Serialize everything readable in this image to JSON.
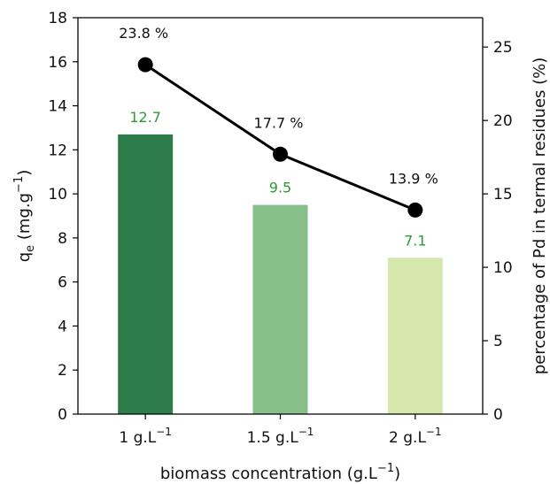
{
  "chart_data": {
    "type": "bar",
    "categories": [
      {
        "base": "1 g.L",
        "sup": "−1"
      },
      {
        "base": "1.5 g.L",
        "sup": "−1"
      },
      {
        "base": "2 g.L",
        "sup": "−1"
      }
    ],
    "bar_series": {
      "values": [
        12.7,
        9.5,
        7.1
      ],
      "labels": [
        "12.7",
        "9.5",
        "7.1"
      ],
      "colors": [
        "#2e7c4a",
        "#86c088",
        "#d6e8ad"
      ],
      "label_color": "#2f9a2f"
    },
    "line_series": {
      "values": [
        23.8,
        17.7,
        13.9
      ],
      "labels": [
        "23.8 %",
        "17.7 %",
        "13.9 %"
      ],
      "color": "#000000"
    },
    "xlabel": {
      "base": "biomass concentration (g.L",
      "sup": "−1",
      "tail": ")"
    },
    "ylabel_left": {
      "base": "q",
      "sub": "e",
      "mid": " (mg.g",
      "sup": "−1",
      "tail": ")"
    },
    "ylabel_right": "percentage of Pd in termal residues (%)",
    "ylim_left": [
      0,
      18
    ],
    "yticks_left": [
      0,
      2,
      4,
      6,
      8,
      10,
      12,
      14,
      16,
      18
    ],
    "ylim_right": [
      0,
      27
    ],
    "yticks_right": [
      0,
      5,
      10,
      15,
      20,
      25
    ],
    "grid": false,
    "legend": "none"
  }
}
